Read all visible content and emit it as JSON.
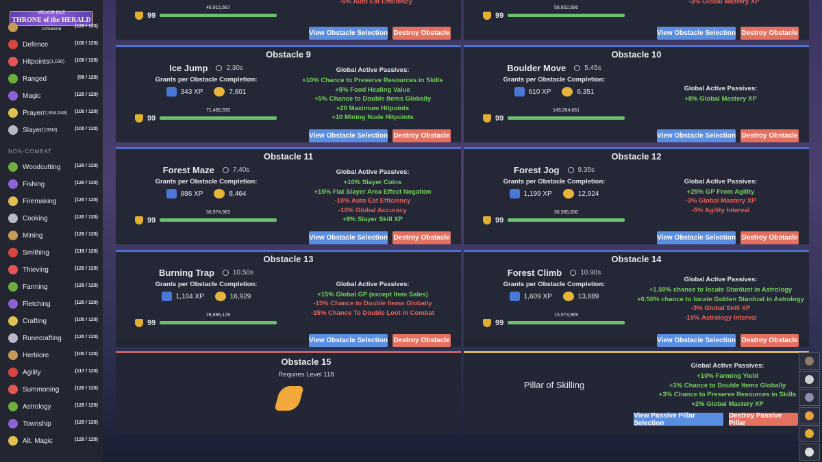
{
  "logo": {
    "top": "MELVOR IDLE",
    "title": "THRONE of the HERALD",
    "sub": "EXPANSION"
  },
  "sidebar": {
    "combat": [
      {
        "level": "(120 / 120)"
      },
      {
        "name": "Defence",
        "level": "(100 / 120)"
      },
      {
        "name": "Hitpoints",
        "extra": "(1,030)",
        "level": "(100 / 120)"
      },
      {
        "name": "Ranged",
        "level": "(99 / 120)"
      },
      {
        "name": "Magic",
        "level": "(120 / 120)"
      },
      {
        "name": "Prayer",
        "extra": "(7,834,048)",
        "level": "(100 / 120)"
      },
      {
        "name": "Slayer",
        "extra": "(199M)",
        "level": "(100 / 120)"
      }
    ],
    "noncombat_heading": "NON-COMBAT",
    "noncombat": [
      {
        "name": "Woodcutting",
        "level": "(120 / 120)"
      },
      {
        "name": "Fishing",
        "level": "(120 / 120)"
      },
      {
        "name": "Firemaking",
        "level": "(120 / 120)"
      },
      {
        "name": "Cooking",
        "level": "(120 / 120)"
      },
      {
        "name": "Mining",
        "level": "(120 / 120)"
      },
      {
        "name": "Smithing",
        "level": "(119 / 120)"
      },
      {
        "name": "Thieving",
        "level": "(120 / 120)"
      },
      {
        "name": "Farming",
        "level": "(120 / 120)"
      },
      {
        "name": "Fletching",
        "level": "(120 / 120)"
      },
      {
        "name": "Crafting",
        "level": "(105 / 120)"
      },
      {
        "name": "Runecrafting",
        "level": "(120 / 120)"
      },
      {
        "name": "Herblore",
        "level": "(100 / 120)"
      },
      {
        "name": "Agility",
        "level": "(117 / 120)"
      },
      {
        "name": "Summoning",
        "level": "(120 / 120)"
      },
      {
        "name": "Astrology",
        "level": "(120 / 120)"
      },
      {
        "name": "Township",
        "level": "(120 / 120)"
      },
      {
        "name": "Alt. Magic",
        "level": "(120 / 120)"
      }
    ]
  },
  "labels": {
    "grants": "Grants per Obstacle Completion:",
    "passives": "Global Active Passives:",
    "view": "View Obstacle Selection",
    "destroy": "Destroy Obstacle"
  },
  "partial_panels": [
    {
      "mastery_level": "99",
      "mastery_xp": "46,015,667",
      "passives": [
        "-5% Auto Eat Efficiency"
      ]
    },
    {
      "mastery_level": "99",
      "mastery_xp": "58,802,686",
      "passives": [
        "-3% Global Mastery XP"
      ]
    }
  ],
  "obstacles": [
    {
      "title": "Obstacle 9",
      "name": "Ice Jump",
      "time": "2.30s",
      "xp": "343 XP",
      "gp": "7,601",
      "mastery_level": "99",
      "mastery_xp": "71,466,930",
      "passives": [
        "+10% Chance to Preserve Resources in Skills",
        "+5% Food Healing Value",
        "+5% Chance to Double Items Globally",
        "+20 Maximum Hitpoints",
        "+10 Mining Node Hitpoints"
      ]
    },
    {
      "title": "Obstacle 10",
      "name": "Boulder Move",
      "time": "5.45s",
      "xp": "610 XP",
      "gp": "6,351",
      "mastery_level": "99",
      "mastery_xp": "149,264,661",
      "passives": [
        "+8% Global Mastery XP"
      ]
    },
    {
      "title": "Obstacle 11",
      "name": "Forest Maze",
      "time": "7.40s",
      "xp": "886 XP",
      "gp": "8,464",
      "mastery_level": "99",
      "mastery_xp": "30,974,963",
      "passives": [
        "+10% Slayer Coins",
        "+15% Flat Slayer Area Effect Negation",
        "-10% Auto Eat Efficiency",
        "-10% Global Accuracy",
        "+8% Slayer Skill XP"
      ]
    },
    {
      "title": "Obstacle 12",
      "name": "Forest Jog",
      "time": "9.35s",
      "xp": "1,199 XP",
      "gp": "12,924",
      "mastery_level": "99",
      "mastery_xp": "30,365,630",
      "passives": [
        "+25% GP From Agility",
        "-3% Global Mastery XP",
        "-5% Agility Interval"
      ]
    },
    {
      "title": "Obstacle 13",
      "name": "Burning Trap",
      "time": "10.50s",
      "xp": "1,104 XP",
      "gp": "16,929",
      "mastery_level": "99",
      "mastery_xp": "28,896,129",
      "passives": [
        "+15% Global GP (except Item Sales)",
        "-15% Chance to Double Items Globally",
        "-15% Chance To Double Loot in Combat"
      ]
    },
    {
      "title": "Obstacle 14",
      "name": "Forest Climb",
      "time": "10.90s",
      "xp": "1,609 XP",
      "gp": "13,889",
      "mastery_level": "99",
      "mastery_xp": "15,573,969",
      "passives": [
        "+1.50% chance to locate Stardust in Astrology",
        "+0.50% chance to locate Golden Stardust in Astrology",
        "-3% Global Skill XP",
        "-10% Astrology Interval"
      ]
    }
  ],
  "obstacle15": {
    "title": "Obstacle 15",
    "requirement": "Requires Level 118"
  },
  "pillar": {
    "name": "Pillar of Skilling",
    "passives_label": "Global Active Passives:",
    "passives": [
      "+10% Farming Yield",
      "+3% Chance to Double Items Globally",
      "+3% Chance to Preserve Resources in Skills",
      "+2% Global Mastery XP"
    ],
    "view": "View Passive Pillar Selection",
    "destroy": "Destroy Passive Pillar"
  }
}
